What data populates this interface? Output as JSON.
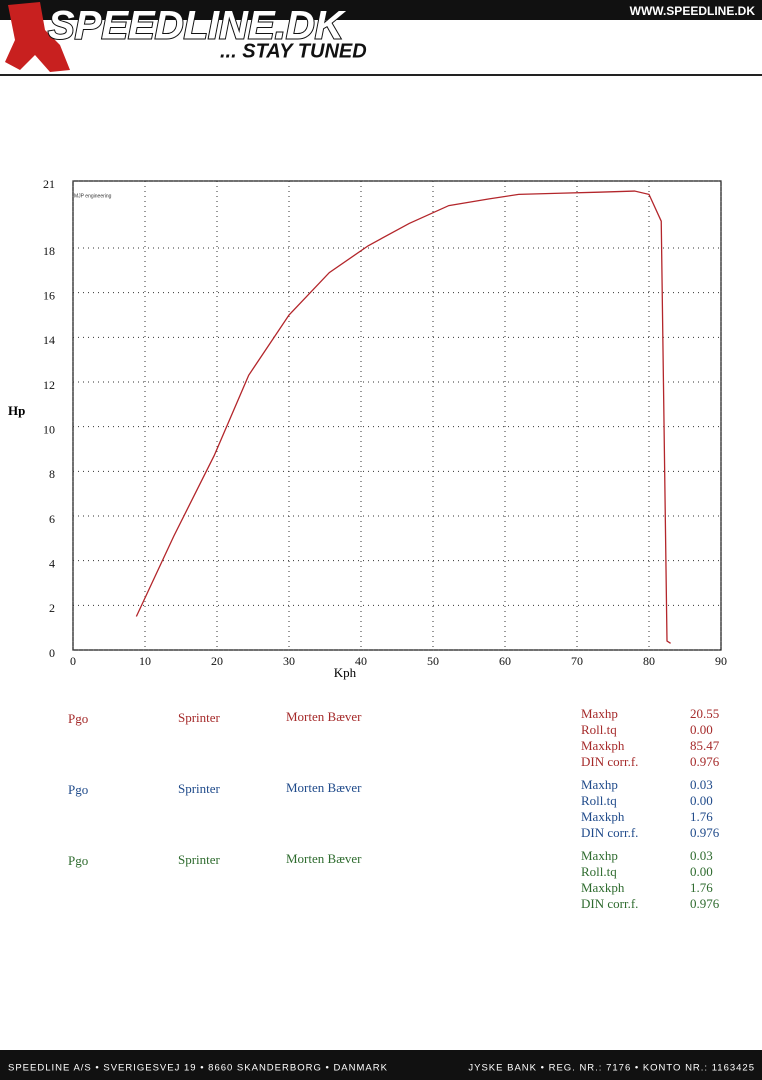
{
  "header": {
    "logo": "SPEEDLINE.DK",
    "slogan": "... STAY TUNED",
    "url": "WWW.SPEEDLINE.DK"
  },
  "chart_data": {
    "type": "line",
    "logo_text": "MJP engineering",
    "x_label": "Kph",
    "y_label": "Hp",
    "xlim": [
      0,
      90
    ],
    "xticks": [
      0,
      10,
      20,
      30,
      40,
      50,
      60,
      70,
      80,
      90
    ],
    "ylim": [
      0,
      21
    ],
    "yticks": [
      0,
      2,
      4,
      6,
      8,
      10,
      12,
      14,
      16,
      18,
      21
    ],
    "grid": true,
    "series": [
      {
        "color": "#b3262b",
        "x": [
          8.8,
          14,
          19.6,
          24.4,
          30,
          35.6,
          41,
          46.7,
          52.2,
          57.8,
          61.9,
          67.5,
          73,
          78,
          80,
          81.7,
          82.5,
          83
        ],
        "values": [
          1.5,
          5.1,
          8.7,
          12.3,
          15.0,
          16.9,
          18.1,
          19.1,
          19.9,
          20.2,
          20.4,
          20.45,
          20.5,
          20.55,
          20.4,
          19.2,
          0.4,
          0.3
        ]
      }
    ]
  },
  "runs": [
    {
      "color": "#a52a2a",
      "name": "Pgo",
      "vehicle": "Sprinter",
      "driver": "Morten Bæver",
      "stats": [
        [
          "Maxhp",
          "20.55"
        ],
        [
          "Roll.tq",
          "0.00"
        ],
        [
          "Maxkph",
          "85.47"
        ],
        [
          "DIN corr.f.",
          "0.976"
        ]
      ]
    },
    {
      "color": "#1f4a8a",
      "name": "Pgo",
      "vehicle": "Sprinter",
      "driver": "Morten Bæver",
      "stats": [
        [
          "Maxhp",
          "0.03"
        ],
        [
          "Roll.tq",
          "0.00"
        ],
        [
          "Maxkph",
          "1.76"
        ],
        [
          "DIN corr.f.",
          "0.976"
        ]
      ]
    },
    {
      "color": "#2e6b2e",
      "name": "Pgo",
      "vehicle": "Sprinter",
      "driver": "Morten Bæver",
      "stats": [
        [
          "Maxhp",
          "0.03"
        ],
        [
          "Roll.tq",
          "0.00"
        ],
        [
          "Maxkph",
          "1.76"
        ],
        [
          "DIN corr.f.",
          "0.976"
        ]
      ]
    }
  ],
  "footer": {
    "address": "SPEEDLINE A/S • SVERIGESVEJ 19 • 8660 SKANDERBORG • DANMARK",
    "bank": "JYSKE BANK • REG. NR.: 7176 • KONTO NR.: 1163425"
  }
}
